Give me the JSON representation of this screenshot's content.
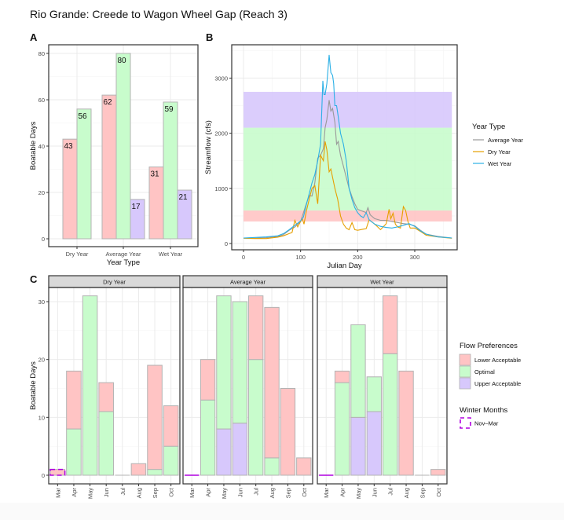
{
  "title": "Rio Grande: Creede to Wagon Wheel Gap (Reach 3)",
  "colors": {
    "lower_acceptable": "#ffc4c4",
    "optimal": "#c8fccc",
    "upper_acceptable": "#d7c8fc",
    "average_year": "#999999",
    "dry_year": "#e69f00",
    "wet_year": "#2bb0e6",
    "winter_outline": "#b000e0"
  },
  "chart_data": [
    {
      "panel": "A",
      "type": "bar",
      "title": "",
      "xlabel": "Year Type",
      "ylabel": "Boatable Days",
      "ylim": [
        0,
        83
      ],
      "yticks": [
        0,
        20,
        40,
        60,
        80
      ],
      "categories": [
        "Dry Year",
        "Average Year",
        "Wet Year"
      ],
      "series": [
        {
          "name": "Lower Acceptable",
          "values": [
            43,
            62,
            31
          ]
        },
        {
          "name": "Optimal",
          "values": [
            56,
            80,
            59
          ]
        },
        {
          "name": "Upper Acceptable",
          "values": [
            null,
            17,
            21
          ]
        }
      ],
      "grid": true,
      "data_labels": true
    },
    {
      "panel": "B",
      "type": "line",
      "xlabel": "Julian Day",
      "ylabel": "Streamflow (cfs)",
      "xlim": [
        -10,
        375
      ],
      "ylim": [
        -60,
        3730
      ],
      "xticks": [
        0,
        100,
        200,
        300
      ],
      "yticks": [
        0,
        1000,
        2000,
        3000
      ],
      "bands": [
        {
          "name": "Lower Acceptable",
          "from": 400,
          "to": 600,
          "x_range": [
            0,
            365
          ]
        },
        {
          "name": "Optimal",
          "from": 600,
          "to": 2100,
          "x_range": [
            0,
            365
          ]
        },
        {
          "name": "Upper Acceptable",
          "from": 2100,
          "to": 2750,
          "x_range": [
            0,
            365
          ]
        }
      ],
      "legend_title": "Year Type",
      "legend_position": "right",
      "series": [
        {
          "name": "Average Year",
          "x": [
            0,
            20,
            40,
            60,
            70,
            80,
            90,
            100,
            105,
            110,
            115,
            120,
            125,
            130,
            135,
            140,
            143,
            146,
            150,
            153,
            156,
            160,
            163,
            166,
            170,
            175,
            180,
            185,
            190,
            195,
            200,
            205,
            210,
            215,
            218,
            222,
            230,
            240,
            250,
            260,
            270,
            280,
            290,
            300,
            310,
            320,
            340,
            365
          ],
          "y": [
            100,
            95,
            105,
            125,
            160,
            240,
            300,
            400,
            560,
            720,
            870,
            860,
            1100,
            1550,
            1600,
            1720,
            2100,
            2250,
            2600,
            2400,
            2450,
            2200,
            1800,
            1850,
            1600,
            1400,
            1200,
            1000,
            850,
            720,
            620,
            600,
            580,
            560,
            650,
            520,
            450,
            420,
            420,
            400,
            380,
            360,
            350,
            320,
            240,
            170,
            130,
            100
          ]
        },
        {
          "name": "Dry Year",
          "x": [
            0,
            20,
            40,
            60,
            70,
            80,
            85,
            90,
            95,
            100,
            103,
            106,
            110,
            115,
            120,
            125,
            130,
            135,
            140,
            143,
            146,
            150,
            153,
            156,
            160,
            165,
            170,
            175,
            180,
            185,
            190,
            195,
            200,
            210,
            215,
            220,
            230,
            240,
            250,
            255,
            258,
            262,
            266,
            270,
            275,
            280,
            284,
            288,
            292,
            300,
            310,
            320,
            340,
            365
          ],
          "y": [
            95,
            90,
            90,
            115,
            140,
            180,
            200,
            420,
            300,
            400,
            450,
            350,
            580,
            800,
            1000,
            1050,
            720,
            1600,
            1500,
            1850,
            1700,
            1300,
            1350,
            1200,
            1000,
            800,
            500,
            350,
            280,
            250,
            380,
            250,
            240,
            260,
            270,
            430,
            350,
            250,
            360,
            620,
            450,
            550,
            350,
            300,
            280,
            670,
            600,
            400,
            280,
            280,
            220,
            150,
            120,
            95
          ]
        },
        {
          "name": "Wet Year",
          "x": [
            0,
            20,
            40,
            60,
            70,
            80,
            90,
            100,
            105,
            110,
            115,
            120,
            125,
            130,
            135,
            139,
            141,
            143,
            146,
            150,
            153,
            156,
            158,
            160,
            163,
            166,
            170,
            175,
            180,
            185,
            190,
            195,
            200,
            205,
            210,
            215,
            220,
            230,
            240,
            250,
            260,
            270,
            280,
            290,
            300,
            310,
            320,
            340,
            365
          ],
          "y": [
            100,
            110,
            120,
            140,
            180,
            250,
            330,
            410,
            480,
            700,
            900,
            1100,
            1250,
            1500,
            1800,
            2950,
            2700,
            2700,
            2900,
            3420,
            3100,
            3050,
            2900,
            2500,
            2500,
            2300,
            2000,
            1800,
            1500,
            1000,
            800,
            650,
            560,
            500,
            470,
            560,
            430,
            350,
            310,
            290,
            280,
            300,
            330,
            360,
            310,
            230,
            170,
            120,
            100
          ]
        }
      ],
      "grid": true
    },
    {
      "panel": "C",
      "type": "bar",
      "stacked": true,
      "ylabel": "Boatable Days",
      "ylim": [
        -1.5,
        33
      ],
      "yticks": [
        0,
        10,
        20,
        30
      ],
      "categories": [
        "Mar",
        "Apr",
        "May",
        "Jun",
        "Jul",
        "Aug",
        "Sep",
        "Oct"
      ],
      "winter_months": [
        "Mar"
      ],
      "facets": [
        {
          "name": "Dry Year",
          "series": [
            {
              "name": "Upper Acceptable",
              "values": [
                0,
                0,
                0,
                0,
                0,
                0,
                0,
                0
              ]
            },
            {
              "name": "Optimal",
              "values": [
                0,
                8,
                31,
                11,
                0,
                0,
                1,
                5
              ]
            },
            {
              "name": "Lower Acceptable",
              "values": [
                1,
                10,
                0,
                5,
                0,
                2,
                18,
                7
              ]
            }
          ]
        },
        {
          "name": "Average Year",
          "series": [
            {
              "name": "Upper Acceptable",
              "values": [
                0,
                0,
                8,
                9,
                0,
                0,
                0,
                0
              ]
            },
            {
              "name": "Optimal",
              "values": [
                0,
                13,
                23,
                21,
                20,
                3,
                0,
                0
              ]
            },
            {
              "name": "Lower Acceptable",
              "values": [
                0,
                7,
                0,
                0,
                11,
                26,
                15,
                3
              ]
            }
          ]
        },
        {
          "name": "Wet Year",
          "series": [
            {
              "name": "Upper Acceptable",
              "values": [
                0,
                0,
                10,
                11,
                0,
                0,
                0,
                0
              ]
            },
            {
              "name": "Optimal",
              "values": [
                0,
                16,
                16,
                6,
                21,
                0,
                0,
                0
              ]
            },
            {
              "name": "Lower Acceptable",
              "values": [
                0,
                2,
                0,
                0,
                10,
                18,
                0,
                1
              ]
            }
          ]
        }
      ],
      "legends": [
        {
          "title": "Flow Preferences",
          "items": [
            "Lower Acceptable",
            "Optimal",
            "Upper Acceptable"
          ]
        },
        {
          "title": "Winter Months",
          "items": [
            "Nov–Mar"
          ]
        }
      ],
      "legend_position": "right",
      "grid": true
    }
  ],
  "panel_labels": [
    "A",
    "B",
    "C"
  ]
}
